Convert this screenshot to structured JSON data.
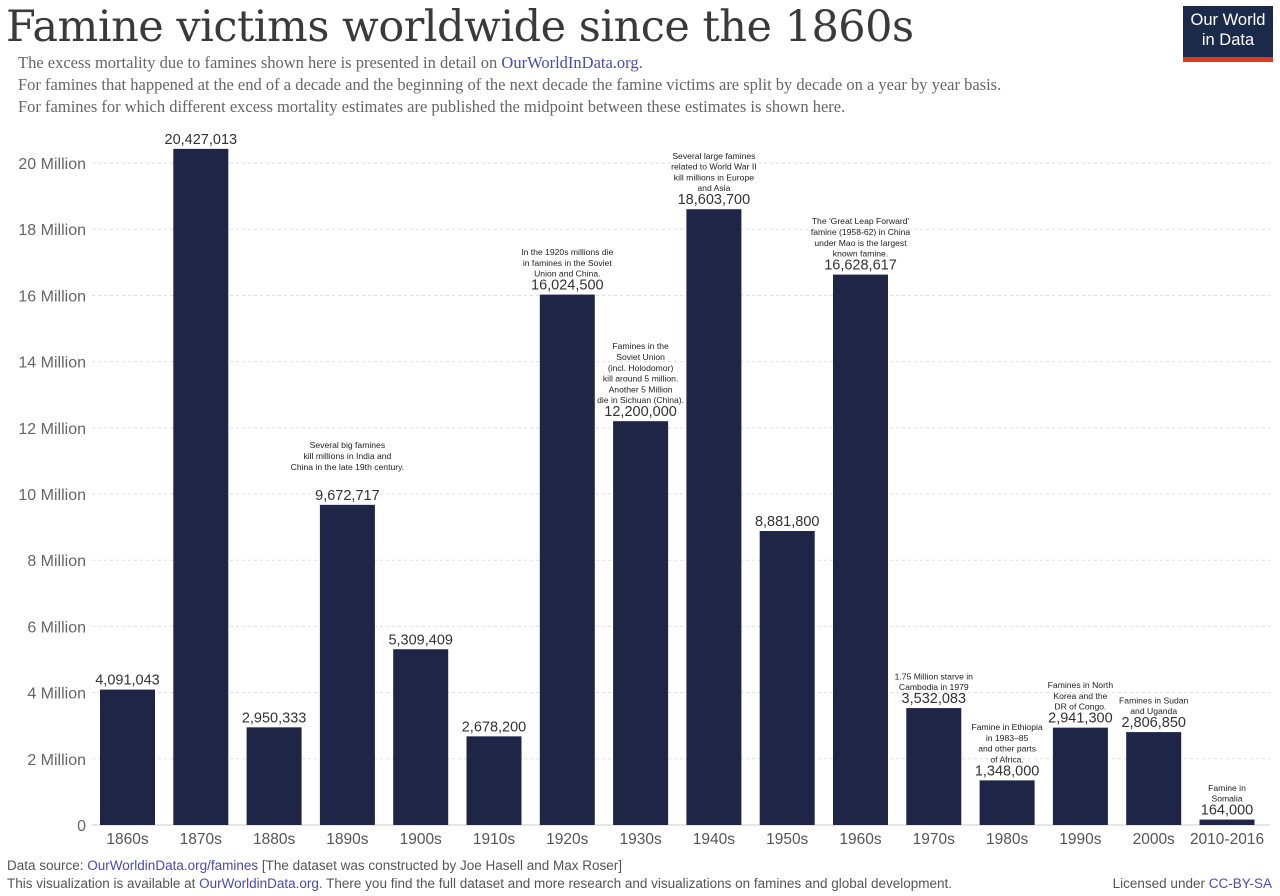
{
  "header": {
    "title": "Famine victims worldwide since the 1860s",
    "subtitle_1_text": "The excess mortality due to famines shown here is presented in detail on ",
    "subtitle_1_link": "OurWorldInData.org",
    "subtitle_1_end": ".",
    "subtitle_2": "For famines that happened at the end of a decade and the beginning of the next decade the famine victims are split by decade on a year by year basis.",
    "subtitle_3": "For famines for which different excess mortality estimates are published the midpoint between these estimates is shown here."
  },
  "logo": {
    "line1": "Our World",
    "line2": "in Data"
  },
  "chart_data": {
    "type": "bar",
    "title": "Famine victims worldwide since the 1860s",
    "xlabel": "",
    "ylabel": "",
    "categories": [
      "1860s",
      "1870s",
      "1880s",
      "1890s",
      "1900s",
      "1910s",
      "1920s",
      "1930s",
      "1940s",
      "1950s",
      "1960s",
      "1970s",
      "1980s",
      "1990s",
      "2000s",
      "2010-2016"
    ],
    "values": [
      4091043,
      20427013,
      2950333,
      9672717,
      5309409,
      2678200,
      16024500,
      12200000,
      18603700,
      8881800,
      16628617,
      3532083,
      1348000,
      2941300,
      2806850,
      164000
    ],
    "value_labels": [
      "4,091,043",
      "20,427,013",
      "2,950,333",
      "9,672,717",
      "5,309,409",
      "2,678,200",
      "16,024,500",
      "12,200,000",
      "18,603,700",
      "8,881,800",
      "16,628,617",
      "3,532,083",
      "1,348,000",
      "2,941,300",
      "2,806,850",
      "164,000"
    ],
    "ylim": [
      0,
      20000000
    ],
    "yticks": [
      0,
      2000000,
      4000000,
      6000000,
      8000000,
      10000000,
      12000000,
      14000000,
      16000000,
      18000000,
      20000000
    ],
    "ytick_labels": [
      "0",
      "2 Million",
      "4 Million",
      "6 Million",
      "8 Million",
      "10 Million",
      "12 Million",
      "14 Million",
      "16 Million",
      "18 Million",
      "20 Million"
    ],
    "grid": true,
    "bar_color": "#1f2547",
    "annotations": [
      {
        "category": "1890s",
        "lines": [
          "Several big famines",
          "kill millions in India and",
          "China in the late 19th century."
        ]
      },
      {
        "category": "1920s",
        "lines": [
          "In the 1920s millions die",
          "in famines in the Soviet",
          "Union and China."
        ]
      },
      {
        "category": "1930s",
        "lines": [
          "Famines in the",
          "Soviet Union",
          "(incl. Holodomor)",
          "kill around 5 million.",
          "Another 5 Million",
          "die in Sichuan (China)."
        ]
      },
      {
        "category": "1940s",
        "lines": [
          "Several large famines",
          "related to World War II",
          "kill millions in Europe",
          "and Asia"
        ]
      },
      {
        "category": "1960s",
        "lines": [
          "The 'Great Leap Forward'",
          "famine (1958-62) in China",
          "under Mao is the largest",
          "known famine."
        ]
      },
      {
        "category": "1970s",
        "lines": [
          "1.75 Million starve in",
          "Cambodia in 1979"
        ]
      },
      {
        "category": "1980s",
        "lines": [
          "Famine in Ethiopia",
          "in 1983–85",
          "and other parts",
          "of Africa."
        ]
      },
      {
        "category": "1990s",
        "lines": [
          "Famines in North",
          "Korea and the",
          "DR of Congo."
        ]
      },
      {
        "category": "2000s",
        "lines": [
          "Famines in Sudan",
          "and Uganda"
        ]
      },
      {
        "category": "2010-2016",
        "lines": [
          "Famine in",
          "Somalia"
        ]
      }
    ]
  },
  "footer": {
    "source_prefix": "Data source: ",
    "source_link": "OurWorldinData.org/famines",
    "source_rest": " [The dataset was constructed by Joe Hasell and Max Roser]",
    "avail_prefix": "This visualization is available at ",
    "avail_link": "OurWorldinData.org",
    "avail_rest": ". There you find the full dataset and more research and visualizations on famines and global development.",
    "license_prefix": "Licensed under ",
    "license_link": "CC-BY-SA"
  }
}
